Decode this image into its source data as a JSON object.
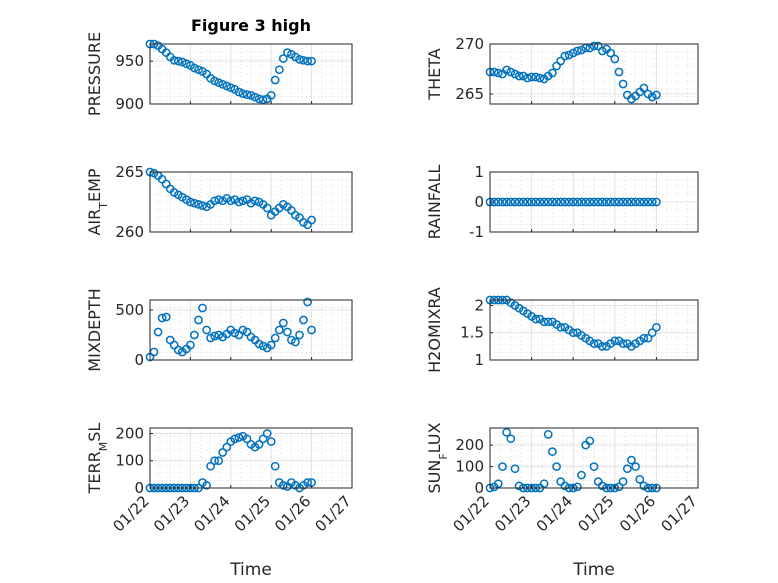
{
  "figure_title": "Figure 3 high",
  "colors": {
    "marker": "#0072bd",
    "axis": "#262626",
    "grid": "#dcdcdc"
  },
  "chart_data": [
    {
      "type": "scatter",
      "ylabel": "PRESSURE",
      "ylim": [
        900,
        970
      ],
      "yticks": [
        900,
        950
      ],
      "xlim": [
        0,
        5
      ],
      "xticklabels": [],
      "x": [
        0,
        0.1,
        0.2,
        0.3,
        0.4,
        0.5,
        0.6,
        0.7,
        0.8,
        0.9,
        1,
        1.1,
        1.2,
        1.3,
        1.4,
        1.5,
        1.6,
        1.7,
        1.8,
        1.9,
        2,
        2.1,
        2.2,
        2.3,
        2.4,
        2.5,
        2.6,
        2.7,
        2.8,
        2.9,
        3,
        3.1,
        3.2,
        3.3,
        3.4,
        3.5,
        3.6,
        3.7,
        3.8,
        3.9,
        4
      ],
      "y": [
        970,
        970,
        968,
        964,
        960,
        955,
        951,
        950,
        949,
        947,
        945,
        942,
        940,
        938,
        935,
        930,
        927,
        925,
        923,
        921,
        919,
        917,
        914,
        912,
        911,
        910,
        908,
        906,
        905,
        906,
        910,
        928,
        940,
        953,
        960,
        958,
        955,
        952,
        951,
        950,
        950
      ]
    },
    {
      "type": "scatter",
      "ylabel": "THETA",
      "ylim": [
        264,
        270
      ],
      "yticks": [
        265,
        270
      ],
      "xlim": [
        0,
        5
      ],
      "xticklabels": [],
      "x": [
        0,
        0.1,
        0.2,
        0.3,
        0.4,
        0.5,
        0.6,
        0.7,
        0.8,
        0.9,
        1,
        1.1,
        1.2,
        1.3,
        1.4,
        1.5,
        1.6,
        1.7,
        1.8,
        1.9,
        2,
        2.1,
        2.2,
        2.3,
        2.4,
        2.5,
        2.6,
        2.7,
        2.8,
        2.9,
        3,
        3.1,
        3.2,
        3.3,
        3.4,
        3.5,
        3.6,
        3.7,
        3.8,
        3.9,
        4
      ],
      "y": [
        267.2,
        267.2,
        267.1,
        267.0,
        267.4,
        267.2,
        267.0,
        266.8,
        266.8,
        266.6,
        266.7,
        266.7,
        266.6,
        266.5,
        266.8,
        267.1,
        267.8,
        268.3,
        268.8,
        268.9,
        269.1,
        269.3,
        269.4,
        269.6,
        269.6,
        269.8,
        269.8,
        269.3,
        269.5,
        269.1,
        268.5,
        267.2,
        266.0,
        264.9,
        264.5,
        264.8,
        265.2,
        265.6,
        265.0,
        264.7,
        264.9
      ]
    },
    {
      "type": "scatter",
      "ylabel": "AIR_TEMP",
      "ylim": [
        260,
        265
      ],
      "yticks": [
        260,
        265
      ],
      "xlim": [
        0,
        5
      ],
      "xticklabels": [],
      "x": [
        0,
        0.1,
        0.2,
        0.3,
        0.4,
        0.5,
        0.6,
        0.7,
        0.8,
        0.9,
        1,
        1.1,
        1.2,
        1.3,
        1.4,
        1.5,
        1.6,
        1.7,
        1.8,
        1.9,
        2,
        2.1,
        2.2,
        2.3,
        2.4,
        2.5,
        2.6,
        2.7,
        2.8,
        2.9,
        3,
        3.1,
        3.2,
        3.3,
        3.4,
        3.5,
        3.6,
        3.7,
        3.8,
        3.9,
        4
      ],
      "y": [
        265,
        264.9,
        264.7,
        264.4,
        264.0,
        263.6,
        263.3,
        263.1,
        262.9,
        262.7,
        262.5,
        262.4,
        262.3,
        262.2,
        262.1,
        262.3,
        262.6,
        262.7,
        262.6,
        262.8,
        262.6,
        262.7,
        262.5,
        262.6,
        262.7,
        262.4,
        262.6,
        262.5,
        262.3,
        262.0,
        261.4,
        261.7,
        262.0,
        262.3,
        262.1,
        261.8,
        261.4,
        261.2,
        260.8,
        260.6,
        261.0
      ]
    },
    {
      "type": "scatter",
      "ylabel": "RAINFALL",
      "ylim": [
        -1,
        1
      ],
      "yticks": [
        -1,
        0,
        1
      ],
      "xlim": [
        0,
        5
      ],
      "xticklabels": [],
      "x": [
        0,
        0.1,
        0.2,
        0.3,
        0.4,
        0.5,
        0.6,
        0.7,
        0.8,
        0.9,
        1,
        1.1,
        1.2,
        1.3,
        1.4,
        1.5,
        1.6,
        1.7,
        1.8,
        1.9,
        2,
        2.1,
        2.2,
        2.3,
        2.4,
        2.5,
        2.6,
        2.7,
        2.8,
        2.9,
        3,
        3.1,
        3.2,
        3.3,
        3.4,
        3.5,
        3.6,
        3.7,
        3.8,
        3.9,
        4
      ],
      "y": [
        0,
        0,
        0,
        0,
        0,
        0,
        0,
        0,
        0,
        0,
        0,
        0,
        0,
        0,
        0,
        0,
        0,
        0,
        0,
        0,
        0,
        0,
        0,
        0,
        0,
        0,
        0,
        0,
        0,
        0,
        0,
        0,
        0,
        0,
        0,
        0,
        0,
        0,
        0,
        0,
        0
      ]
    },
    {
      "type": "scatter",
      "ylabel": "MIXDEPTH",
      "ylim": [
        0,
        600
      ],
      "yticks": [
        0,
        500
      ],
      "xlim": [
        0,
        5
      ],
      "xticklabels": [],
      "x": [
        0,
        0.1,
        0.2,
        0.3,
        0.4,
        0.5,
        0.6,
        0.7,
        0.8,
        0.9,
        1,
        1.1,
        1.2,
        1.3,
        1.4,
        1.5,
        1.6,
        1.7,
        1.8,
        1.9,
        2,
        2.1,
        2.2,
        2.3,
        2.4,
        2.5,
        2.6,
        2.7,
        2.8,
        2.9,
        3,
        3.1,
        3.2,
        3.3,
        3.4,
        3.5,
        3.6,
        3.7,
        3.8,
        3.9,
        4
      ],
      "y": [
        30,
        80,
        280,
        420,
        430,
        200,
        150,
        100,
        80,
        110,
        150,
        250,
        400,
        520,
        300,
        220,
        240,
        250,
        230,
        260,
        300,
        270,
        250,
        300,
        280,
        230,
        200,
        160,
        140,
        120,
        150,
        220,
        300,
        370,
        280,
        200,
        180,
        250,
        400,
        580,
        300
      ]
    },
    {
      "type": "scatter",
      "ylabel": "H2OMIXRA",
      "ylim": [
        1,
        2.1
      ],
      "yticks": [
        1,
        1.5,
        2
      ],
      "yticklabels": [
        "1",
        "1.5",
        "2"
      ],
      "xlim": [
        0,
        5
      ],
      "xticklabels": [],
      "x": [
        0,
        0.1,
        0.2,
        0.3,
        0.4,
        0.5,
        0.6,
        0.7,
        0.8,
        0.9,
        1,
        1.1,
        1.2,
        1.3,
        1.4,
        1.5,
        1.6,
        1.7,
        1.8,
        1.9,
        2,
        2.1,
        2.2,
        2.3,
        2.4,
        2.5,
        2.6,
        2.7,
        2.8,
        2.9,
        3,
        3.1,
        3.2,
        3.3,
        3.4,
        3.5,
        3.6,
        3.7,
        3.8,
        3.9,
        4
      ],
      "y": [
        2.1,
        2.1,
        2.1,
        2.1,
        2.1,
        2.05,
        2.0,
        1.95,
        1.9,
        1.85,
        1.8,
        1.75,
        1.75,
        1.7,
        1.7,
        1.7,
        1.65,
        1.6,
        1.6,
        1.55,
        1.5,
        1.5,
        1.45,
        1.4,
        1.35,
        1.3,
        1.3,
        1.25,
        1.25,
        1.3,
        1.35,
        1.35,
        1.3,
        1.3,
        1.25,
        1.3,
        1.35,
        1.4,
        1.4,
        1.5,
        1.6
      ]
    },
    {
      "type": "scatter",
      "ylabel": "TERR_MSL",
      "ylim": [
        0,
        220
      ],
      "yticks": [
        0,
        100,
        200
      ],
      "xlim": [
        0,
        5
      ],
      "xticklabels": [
        "01/22",
        "01/23",
        "01/24",
        "01/25",
        "01/26",
        "01/27"
      ],
      "xlabel": "Time",
      "x": [
        0,
        0.1,
        0.2,
        0.3,
        0.4,
        0.5,
        0.6,
        0.7,
        0.8,
        0.9,
        1,
        1.1,
        1.2,
        1.3,
        1.4,
        1.5,
        1.6,
        1.7,
        1.8,
        1.9,
        2,
        2.1,
        2.2,
        2.3,
        2.4,
        2.5,
        2.6,
        2.7,
        2.8,
        2.9,
        3,
        3.1,
        3.2,
        3.3,
        3.4,
        3.5,
        3.6,
        3.7,
        3.8,
        3.9,
        4
      ],
      "y": [
        0,
        0,
        0,
        0,
        0,
        0,
        0,
        0,
        0,
        0,
        0,
        0,
        0,
        20,
        10,
        80,
        100,
        100,
        130,
        150,
        170,
        180,
        185,
        190,
        180,
        160,
        150,
        160,
        180,
        200,
        170,
        80,
        20,
        10,
        5,
        20,
        10,
        0,
        10,
        20,
        20
      ]
    },
    {
      "type": "scatter",
      "ylabel": "SUN_FLUX",
      "ylim": [
        0,
        280
      ],
      "yticks": [
        0,
        100,
        200
      ],
      "xlim": [
        0,
        5
      ],
      "xticklabels": [
        "01/22",
        "01/23",
        "01/24",
        "01/25",
        "01/26",
        "01/27"
      ],
      "xlabel": "Time",
      "x": [
        0,
        0.1,
        0.2,
        0.3,
        0.4,
        0.5,
        0.6,
        0.7,
        0.8,
        0.9,
        1,
        1.1,
        1.2,
        1.3,
        1.4,
        1.5,
        1.6,
        1.7,
        1.8,
        1.9,
        2,
        2.1,
        2.2,
        2.3,
        2.4,
        2.5,
        2.6,
        2.7,
        2.8,
        2.9,
        3,
        3.1,
        3.2,
        3.3,
        3.4,
        3.5,
        3.6,
        3.7,
        3.8,
        3.9,
        4
      ],
      "y": [
        0,
        5,
        20,
        100,
        260,
        230,
        90,
        10,
        0,
        0,
        0,
        0,
        0,
        20,
        250,
        170,
        100,
        30,
        10,
        0,
        0,
        5,
        60,
        200,
        220,
        100,
        30,
        10,
        0,
        0,
        0,
        5,
        30,
        90,
        130,
        100,
        40,
        10,
        0,
        0,
        0
      ]
    }
  ]
}
